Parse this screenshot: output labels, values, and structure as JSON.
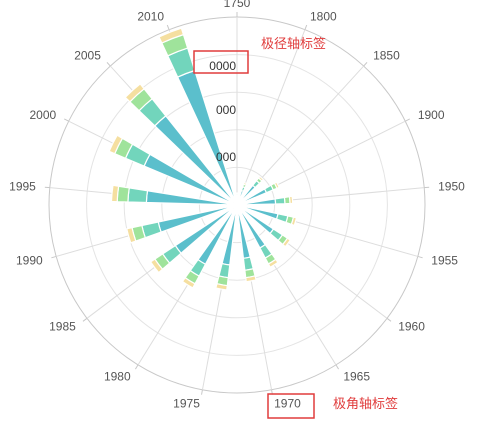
{
  "chart_data": {
    "type": "polar-bar",
    "stacked": true,
    "angle_categories": [
      "1750",
      "1800",
      "1850",
      "1900",
      "1950",
      "1955",
      "1960",
      "1965",
      "1970",
      "1975",
      "1980",
      "1985",
      "1990",
      "1995",
      "2000",
      "2005",
      "2010"
    ],
    "radius_ticks_visible": [
      "0000",
      "000",
      "000"
    ],
    "series": [
      {
        "color": "#5bbfcc",
        "values": [
          20,
          45,
          75,
          95,
          115,
          125,
          130,
          145,
          160,
          180,
          200,
          220,
          240,
          270,
          300,
          340,
          420
        ]
      },
      {
        "color": "#72d5bc",
        "values": [
          8,
          12,
          18,
          22,
          28,
          30,
          32,
          34,
          36,
          38,
          40,
          45,
          50,
          55,
          60,
          65,
          70
        ]
      },
      {
        "color": "#9fe39b",
        "values": [
          5,
          8,
          10,
          12,
          15,
          17,
          18,
          20,
          22,
          24,
          26,
          28,
          30,
          32,
          35,
          38,
          42
        ]
      },
      {
        "color": "#f5dfa0",
        "values": [
          3,
          5,
          6,
          7,
          8,
          9,
          10,
          11,
          12,
          13,
          14,
          15,
          16,
          17,
          18,
          19,
          20
        ]
      }
    ],
    "grid": true
  },
  "annotations": {
    "radius_axis_label": "极径轴标签",
    "angle_axis_label": "极角轴标签",
    "highlight_color": "#e03c3c"
  }
}
